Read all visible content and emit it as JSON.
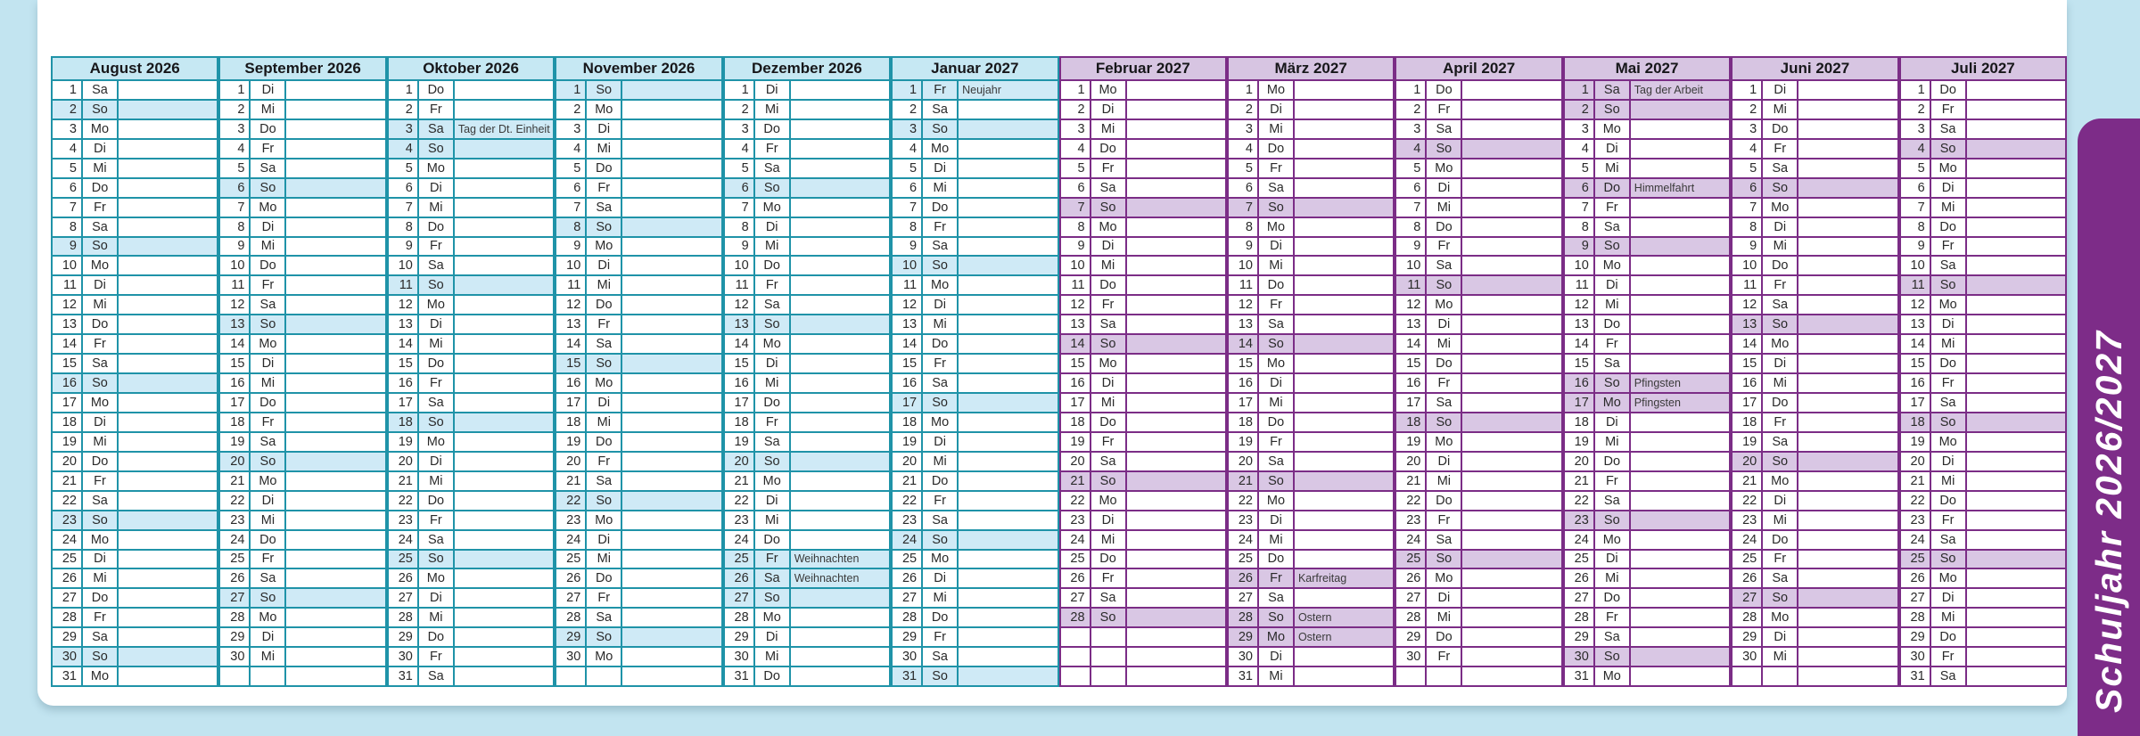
{
  "page": {
    "background_color": "#c2e4f0",
    "sheet_color": "#ffffff",
    "tab": {
      "label": "Schuljahr 2026/2027",
      "color": "#7d2c88",
      "text_color": "#ffffff"
    }
  },
  "calendar": {
    "weekdays": [
      "Mo",
      "Di",
      "Mi",
      "Do",
      "Fr",
      "Sa",
      "So"
    ],
    "weekend_day": "So",
    "rows_per_month": 31,
    "palettes": {
      "cyan": {
        "border": "#1f93a8",
        "header_bg": "#c6e8f3",
        "highlight_bg": "#cfeaf6"
      },
      "purple": {
        "border": "#7b2d86",
        "header_bg": "#d7c5e2",
        "highlight_bg": "#d9c7e4"
      }
    },
    "months": [
      {
        "label": "August 2026",
        "days": 31,
        "first_weekday": "Sa",
        "palette": "cyan",
        "holidays": {}
      },
      {
        "label": "September 2026",
        "days": 30,
        "first_weekday": "Di",
        "palette": "cyan",
        "holidays": {}
      },
      {
        "label": "Oktober 2026",
        "days": 31,
        "first_weekday": "Do",
        "palette": "cyan",
        "holidays": {
          "3": "Tag der Dt. Einheit"
        }
      },
      {
        "label": "November 2026",
        "days": 30,
        "first_weekday": "So",
        "palette": "cyan",
        "holidays": {}
      },
      {
        "label": "Dezember 2026",
        "days": 31,
        "first_weekday": "Di",
        "palette": "cyan",
        "holidays": {
          "25": "Weihnachten",
          "26": "Weihnachten"
        }
      },
      {
        "label": "Januar 2027",
        "days": 31,
        "first_weekday": "Fr",
        "palette": "cyan",
        "holidays": {
          "1": "Neujahr"
        }
      },
      {
        "label": "Februar 2027",
        "days": 28,
        "first_weekday": "Mo",
        "palette": "purple",
        "holidays": {}
      },
      {
        "label": "März 2027",
        "days": 31,
        "first_weekday": "Mo",
        "palette": "purple",
        "holidays": {
          "26": "Karfreitag",
          "28": "Ostern",
          "29": "Ostern"
        }
      },
      {
        "label": "April 2027",
        "days": 30,
        "first_weekday": "Do",
        "palette": "purple",
        "holidays": {}
      },
      {
        "label": "Mai 2027",
        "days": 31,
        "first_weekday": "Sa",
        "palette": "purple",
        "holidays": {
          "1": "Tag der Arbeit",
          "6": "Himmelfahrt",
          "16": "Pfingsten",
          "17": "Pfingsten"
        }
      },
      {
        "label": "Juni 2027",
        "days": 30,
        "first_weekday": "Di",
        "palette": "purple",
        "holidays": {}
      },
      {
        "label": "Juli 2027",
        "days": 31,
        "first_weekday": "Do",
        "palette": "purple",
        "holidays": {}
      }
    ]
  }
}
